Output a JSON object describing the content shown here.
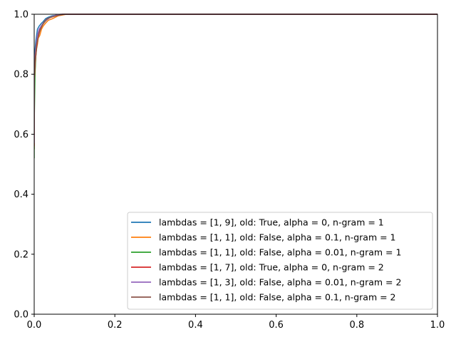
{
  "chart_data": {
    "type": "line",
    "title": "",
    "xlabel": "",
    "ylabel": "",
    "xlim": [
      0,
      1
    ],
    "ylim": [
      0,
      1
    ],
    "xticks": [
      "0.0",
      "0.2",
      "0.4",
      "0.6",
      "0.8",
      "1.0"
    ],
    "yticks": [
      "0.0",
      "0.2",
      "0.4",
      "0.6",
      "0.8",
      "1.0"
    ],
    "grid": false,
    "legend_position": "lower-right",
    "series": [
      {
        "name": "lambdas = [1, 9], old: True, alpha = 0, n-gram = 1",
        "color": "#1f77b4",
        "x": [
          0,
          0,
          0.002,
          0.004,
          0.006,
          0.008,
          0.01,
          0.012,
          0.015,
          0.018,
          0.022,
          0.028,
          0.035,
          0.045,
          0.06,
          0.075,
          1.0
        ],
        "y": [
          0.55,
          0.82,
          0.88,
          0.91,
          0.93,
          0.95,
          0.955,
          0.96,
          0.965,
          0.97,
          0.975,
          0.985,
          0.99,
          0.995,
          0.998,
          1.0,
          1.0
        ]
      },
      {
        "name": "lambdas = [1, 1], old: False, alpha = 0.1, n-gram = 1",
        "color": "#ff7f0e",
        "x": [
          0,
          0,
          0.003,
          0.005,
          0.008,
          0.01,
          0.014,
          0.018,
          0.022,
          0.028,
          0.035,
          0.045,
          0.06,
          0.08,
          1.0
        ],
        "y": [
          0.55,
          0.75,
          0.84,
          0.88,
          0.9,
          0.92,
          0.93,
          0.95,
          0.96,
          0.97,
          0.98,
          0.985,
          0.995,
          1.0,
          1.0
        ]
      },
      {
        "name": "lambdas = [1, 1], old: False, alpha = 0.01, n-gram = 1",
        "color": "#2ca02c",
        "x": [
          0,
          0,
          0.002,
          0.004,
          0.007,
          0.01,
          0.015,
          0.02,
          0.03,
          0.04,
          0.055,
          0.07,
          1.0
        ],
        "y": [
          0.52,
          0.63,
          0.8,
          0.86,
          0.9,
          0.93,
          0.95,
          0.965,
          0.98,
          0.99,
          0.997,
          1.0,
          1.0
        ]
      },
      {
        "name": "lambdas = [1, 7], old: True, alpha = 0, n-gram = 2",
        "color": "#d62728",
        "x": [
          0,
          0,
          0.003,
          0.006,
          0.009,
          0.012,
          0.016,
          0.02,
          0.026,
          0.033,
          0.042,
          0.055,
          0.07,
          1.0
        ],
        "y": [
          0.56,
          0.78,
          0.85,
          0.89,
          0.92,
          0.94,
          0.955,
          0.965,
          0.975,
          0.985,
          0.99,
          0.997,
          1.0,
          1.0
        ]
      },
      {
        "name": "lambdas = [1, 3], old: False, alpha = 0.01, n-gram = 2",
        "color": "#9467bd",
        "x": [
          0,
          0,
          0.002,
          0.005,
          0.008,
          0.012,
          0.017,
          0.022,
          0.03,
          0.04,
          0.05,
          0.065,
          1.0
        ],
        "y": [
          0.57,
          0.8,
          0.86,
          0.9,
          0.93,
          0.95,
          0.96,
          0.97,
          0.98,
          0.99,
          0.995,
          1.0,
          1.0
        ]
      },
      {
        "name": "lambdas = [1, 1], old: False, alpha = 0.1, n-gram = 2",
        "color": "#8c564b",
        "x": [
          0,
          0,
          0.003,
          0.006,
          0.01,
          0.014,
          0.019,
          0.025,
          0.032,
          0.042,
          0.055,
          0.075,
          1.0
        ],
        "y": [
          0.6,
          0.8,
          0.86,
          0.9,
          0.925,
          0.945,
          0.96,
          0.975,
          0.985,
          0.99,
          0.995,
          1.0,
          1.0
        ]
      }
    ]
  }
}
